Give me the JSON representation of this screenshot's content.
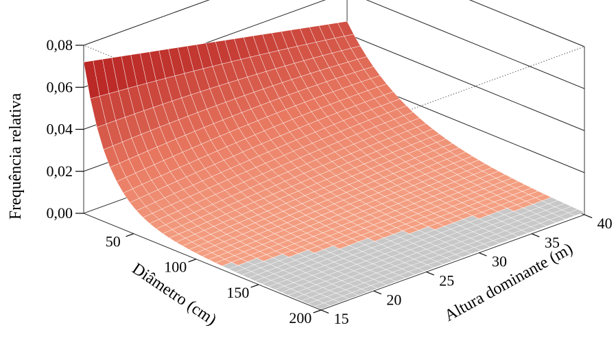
{
  "chart_data": {
    "type": "surface3d",
    "title": "",
    "xlabel": "Diâmetro (cm)",
    "ylabel": "Altura dominante (m)",
    "zlabel": "Frequência relativa",
    "x_ticks": [
      "50",
      "100",
      "150",
      "200"
    ],
    "x_tick_values": [
      50,
      100,
      150,
      200
    ],
    "y_ticks": [
      "15",
      "20",
      "25",
      "30",
      "35",
      "40"
    ],
    "y_tick_values": [
      15,
      20,
      25,
      30,
      35,
      40
    ],
    "z_ticks": [
      "0,00",
      "0,02",
      "0,04",
      "0,06",
      "0,08"
    ],
    "z_tick_values": [
      0,
      0.02,
      0.04,
      0.06,
      0.08
    ],
    "xlim": [
      10,
      200
    ],
    "ylim": [
      15,
      40
    ],
    "zlim": [
      0,
      0.08
    ],
    "surface_samples": [
      {
        "diametro": 10,
        "altura": 15,
        "frequencia": 0.069
      },
      {
        "diametro": 30,
        "altura": 15,
        "frequencia": 0.042
      },
      {
        "diametro": 50,
        "altura": 15,
        "frequencia": 0.024
      },
      {
        "diametro": 10,
        "altura": 40,
        "frequencia": 0.046
      },
      {
        "diametro": 50,
        "altura": 40,
        "frequencia": 0.033
      },
      {
        "diametro": 100,
        "altura": 40,
        "frequencia": 0.015
      },
      {
        "diametro": 150,
        "altura": 40,
        "frequencia": 0.005
      },
      {
        "diametro": 200,
        "altura": 40,
        "frequencia": 0.002
      }
    ],
    "colors": {
      "surface_low": "#c8c8c8",
      "surface_mid": "#f4a083",
      "surface_high": "#b52020",
      "mesh": "#ffffff"
    },
    "grid": true,
    "legend": "none"
  }
}
